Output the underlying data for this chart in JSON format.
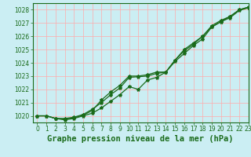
{
  "title": "Graphe pression niveau de la mer (hPa)",
  "background_color": "#cbeef3",
  "grid_color": "#ffaaaa",
  "line_color": "#1a6b1a",
  "xlim": [
    -0.5,
    23
  ],
  "ylim": [
    1019.5,
    1028.5
  ],
  "yticks": [
    1020,
    1021,
    1022,
    1023,
    1024,
    1025,
    1026,
    1027,
    1028
  ],
  "xticks": [
    0,
    1,
    2,
    3,
    4,
    5,
    6,
    7,
    8,
    9,
    10,
    11,
    12,
    13,
    14,
    15,
    16,
    17,
    18,
    19,
    20,
    21,
    22,
    23
  ],
  "series": [
    [
      1020.0,
      1020.0,
      1019.8,
      1019.8,
      1019.9,
      1020.1,
      1020.5,
      1021.0,
      1021.6,
      1022.1,
      1022.9,
      1022.95,
      1023.0,
      1023.2,
      1023.3,
      1024.2,
      1024.9,
      1025.4,
      1026.0,
      1026.8,
      1027.2,
      1027.5,
      1028.0,
      1028.2
    ],
    [
      1020.0,
      1020.0,
      1019.8,
      1019.75,
      1019.85,
      1020.05,
      1020.4,
      1021.2,
      1021.8,
      1022.3,
      1023.0,
      1023.0,
      1023.1,
      1023.3,
      1023.3,
      1024.2,
      1025.0,
      1025.5,
      1026.0,
      1026.7,
      1027.1,
      1027.5,
      1028.0,
      1028.2
    ],
    [
      1020.0,
      1020.0,
      1019.8,
      1019.7,
      1019.8,
      1020.0,
      1020.2,
      1020.6,
      1021.1,
      1021.6,
      1022.2,
      1022.0,
      1022.7,
      1022.9,
      1023.3,
      1024.1,
      1024.7,
      1025.3,
      1025.8,
      1026.7,
      1027.1,
      1027.4,
      1027.95,
      1028.15
    ]
  ],
  "marker": "*",
  "marker_size": 3,
  "line_width": 0.9,
  "title_fontsize": 7.5,
  "tick_fontsize": 5.5,
  "tick_color": "#1a6b1a",
  "axis_color": "#1a6b1a",
  "figsize": [
    3.2,
    2.0
  ],
  "dpi": 100
}
